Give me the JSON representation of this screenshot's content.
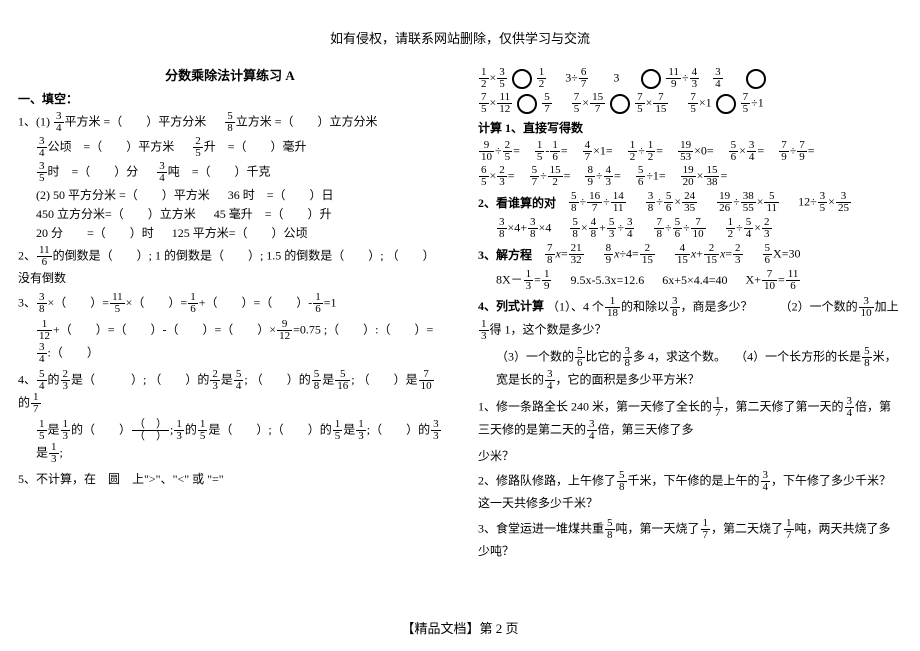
{
  "header": "如有侵权，请联系网站删除，仅供学习与交流",
  "footer": "【精品文档】第 2 页",
  "left": {
    "title": "分数乘除法计算练习 A",
    "sec1_head": "一、填空：",
    "q1_label": "1、(1)",
    "sq_m_to_dm": "平方米 =（　　）平方分米",
    "cu_m_to_dm": "立方米 =（　　）立方分米",
    "ha_to_sqm": "公顷　=（　　）平方米",
    "l_to_ml": "升　=（　　）毫升",
    "h_to_min": "时　=（　　）分",
    "t_to_kg": "吨　=（　　）千克",
    "q1_2a": "(2) 50 平方分米 =（　　）平方米",
    "q1_2b": "36 时　=（　　）日",
    "q1_2c": "450 立方分米=（　　）立方米",
    "q1_2d": "45 毫升　=（　　）升",
    "q1_2e": "20 分　　=（　　）时",
    "q1_2f": "125 平方米=（　　）公顷",
    "q2a": "2、",
    "q2b": "的倒数是（　　）; 1 的倒数是（　　）; 1.5 的倒数是（　　）; （　　）没有倒数",
    "q3a": "3、",
    "q3b": "×（　　）=",
    "q3c": "×（　　）=",
    "q3d": "+（　　）=（　　）-",
    "q3e": "=1",
    "q3line2a": "+（　　）=（　　）-（　　）=（　　）×",
    "q3line2b": "=0.75 ;（　　）:（　　）=",
    "q3line2c": ":（　　）",
    "q4a": "4、",
    "q4b": "的",
    "q4c": "是（　　　）; （　　）的",
    "q4d": "是",
    "q4e": "; （　　）的",
    "q4f": "是",
    "q4g": "; （　　）是",
    "q4h": "的",
    "q4line2a": "是",
    "q4line2b": "的",
    "q4line2c": ";",
    "q4line2d": "的",
    "q4line2e": "是（　　）;（　　）的",
    "q4line2f": "是",
    "q4line2g": ";（　　）的",
    "q4line2h": "是",
    "q4line2i": ";",
    "q5": "5、不计算，在　圆　上\">\"、\"<\" 或 \"=\""
  },
  "right": {
    "calc1_head": "计算 1、直接写得数",
    "calc2_head": "2、看谁算的对",
    "calc3_head": "3、解方程",
    "q4_head": "4、列式计算",
    "q4_1": "（1）、4 个",
    "q4_1b": "的和除以",
    "q4_1c": "，商是多少？",
    "q4_2": "（2）一个数的",
    "q4_2b": "加上",
    "q4_2c": "得 1，这个数是多少？",
    "q4_3": "（3）一个数的",
    "q4_3b": "比它的",
    "q4_3c": "多 4，求这个数。",
    "q4_4": "（4）一个长方形的长是",
    "q4_4b": "米，宽是长的",
    "q4_4c": "，它的面积是多少平方米？",
    "word1a": "1、修一条路全长 240 米，第一天修了全长的",
    "word1b": "，第二天修了第一天的",
    "word1c": "倍，第三天修的是第二天的",
    "word1d": "倍，第三天修了多",
    "word1e": "少米？",
    "word2a": "2、修路队修路，上午修了",
    "word2b": "千米，下午修的是上午的",
    "word2c": "，下午修了多少千米？这一天共修多少千米？",
    "word3a": "3、食堂运进一堆煤共重",
    "word3b": "吨，第一天烧了",
    "word3c": "，第二天烧了",
    "word3d": "吨，两天共烧了多少吨？",
    "eq1": "8X－",
    "eq1b": "=",
    "eq2": "9.5x-5.3x=12.6",
    "eq3": "6x+5×4.4=40",
    "eq4": "X+",
    "eq4b": "=",
    "x30": "X=30"
  },
  "fracs": {
    "3_4": {
      "n": "3",
      "d": "4"
    },
    "5_8": {
      "n": "5",
      "d": "8"
    },
    "2_5": {
      "n": "2",
      "d": "5"
    },
    "3_5": {
      "n": "3",
      "d": "5"
    },
    "3_8": {
      "n": "3",
      "d": "8"
    },
    "11_6": {
      "n": "11",
      "d": "6"
    },
    "11_5": {
      "n": "11",
      "d": "5"
    },
    "1_6": {
      "n": "1",
      "d": "6"
    },
    "1_12": {
      "n": "1",
      "d": "12"
    },
    "9_12": {
      "n": "9",
      "d": "12"
    },
    "5_4": {
      "n": "5",
      "d": "4"
    },
    "2_3": {
      "n": "2",
      "d": "3"
    },
    "5_16": {
      "n": "5",
      "d": "16"
    },
    "7_10": {
      "n": "7",
      "d": "10"
    },
    "1_7": {
      "n": "1",
      "d": "7"
    },
    "1_5": {
      "n": "1",
      "d": "5"
    },
    "1_3": {
      "n": "1",
      "d": "3"
    },
    "3_3": {
      "n": "3",
      "d": "3"
    },
    "1_2": {
      "n": "1",
      "d": "2"
    },
    "6_7": {
      "n": "6",
      "d": "7"
    },
    "11_9": {
      "n": "11",
      "d": "9"
    },
    "4_3": {
      "n": "4",
      "d": "3"
    },
    "7_5": {
      "n": "7",
      "d": "5"
    },
    "5_7": {
      "n": "5",
      "d": "7"
    },
    "11_12": {
      "n": "11",
      "d": "12"
    },
    "15_7": {
      "n": "15",
      "d": "7"
    },
    "7_15": {
      "n": "7",
      "d": "15"
    },
    "9_10": {
      "n": "9",
      "d": "10"
    },
    "4_7": {
      "n": "4",
      "d": "7"
    },
    "19_53": {
      "n": "19",
      "d": "53"
    },
    "5_6": {
      "n": "5",
      "d": "6"
    },
    "7_9": {
      "n": "7",
      "d": "9"
    },
    "6_5": {
      "n": "6",
      "d": "5"
    },
    "15_2": {
      "n": "15",
      "d": "2"
    },
    "8_9": {
      "n": "8",
      "d": "9"
    },
    "19_20": {
      "n": "19",
      "d": "20"
    },
    "15_38": {
      "n": "15",
      "d": "38"
    },
    "16_7": {
      "n": "16",
      "d": "7"
    },
    "14_11": {
      "n": "14",
      "d": "11"
    },
    "24_35": {
      "n": "24",
      "d": "35"
    },
    "19_26": {
      "n": "19",
      "d": "26"
    },
    "38_55": {
      "n": "38",
      "d": "55"
    },
    "5_11": {
      "n": "5",
      "d": "11"
    },
    "3_25": {
      "n": "3",
      "d": "25"
    },
    "4_8": {
      "n": "4",
      "d": "8"
    },
    "7_8": {
      "n": "7",
      "d": "8"
    },
    "21_32": {
      "n": "21",
      "d": "32"
    },
    "2_15": {
      "n": "2",
      "d": "15"
    },
    "4_15": {
      "n": "4",
      "d": "15"
    },
    "1_9": {
      "n": "1",
      "d": "9"
    },
    "1_18": {
      "n": "1",
      "d": "18"
    },
    "3_10": {
      "n": "3",
      "d": "10"
    },
    "5_10": {
      "n": "5",
      "d": "10"
    }
  }
}
